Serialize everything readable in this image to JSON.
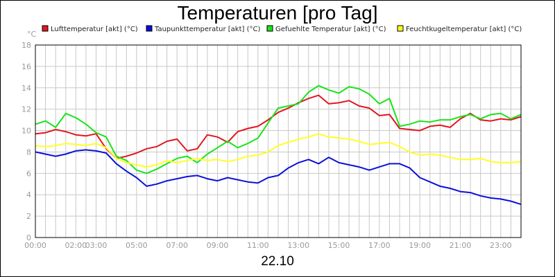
{
  "chart_data": {
    "type": "line",
    "title": "Temperaturen [pro Tag]",
    "date_label": "22.10",
    "y_unit": "°C",
    "ylim": [
      0,
      18
    ],
    "y_ticks": [
      "0",
      "2",
      "4",
      "6",
      "8",
      "10",
      "12",
      "14",
      "16",
      "18"
    ],
    "xlim": [
      0,
      24
    ],
    "x_ticks": [
      {
        "h": 0,
        "label": "00:00"
      },
      {
        "h": 2,
        "label": "02:00"
      },
      {
        "h": 3,
        "label": "03:00"
      },
      {
        "h": 5,
        "label": "05:00"
      },
      {
        "h": 7,
        "label": "07:00"
      },
      {
        "h": 9,
        "label": "09:00"
      },
      {
        "h": 11,
        "label": "11:00"
      },
      {
        "h": 13,
        "label": "13:00"
      },
      {
        "h": 15,
        "label": "15:00"
      },
      {
        "h": 17,
        "label": "17:00"
      },
      {
        "h": 19,
        "label": "19:00"
      },
      {
        "h": 21,
        "label": "21:00"
      },
      {
        "h": 23,
        "label": "23:00"
      }
    ],
    "grid": true,
    "legend_position": "top",
    "series": [
      {
        "name": "Lufttemperatur [akt] (°C)",
        "color": "#e0161e",
        "points": [
          [
            0,
            9.7
          ],
          [
            0.5,
            9.8
          ],
          [
            1,
            10.1
          ],
          [
            1.5,
            9.9
          ],
          [
            2,
            9.6
          ],
          [
            2.5,
            9.5
          ],
          [
            3,
            9.7
          ],
          [
            3.5,
            8.3
          ],
          [
            4,
            7.4
          ],
          [
            4.5,
            7.6
          ],
          [
            5,
            7.9
          ],
          [
            5.5,
            8.3
          ],
          [
            6,
            8.5
          ],
          [
            6.5,
            9.0
          ],
          [
            7,
            9.2
          ],
          [
            7.5,
            8.1
          ],
          [
            8,
            8.3
          ],
          [
            8.5,
            9.6
          ],
          [
            9,
            9.4
          ],
          [
            9.5,
            8.9
          ],
          [
            10,
            9.9
          ],
          [
            10.5,
            10.2
          ],
          [
            11,
            10.4
          ],
          [
            11.5,
            11.0
          ],
          [
            12,
            11.7
          ],
          [
            12.5,
            12.1
          ],
          [
            13,
            12.6
          ],
          [
            13.5,
            13.0
          ],
          [
            14,
            13.3
          ],
          [
            14.5,
            12.5
          ],
          [
            15,
            12.6
          ],
          [
            15.5,
            12.8
          ],
          [
            16,
            12.3
          ],
          [
            16.5,
            12.1
          ],
          [
            17,
            11.4
          ],
          [
            17.5,
            11.5
          ],
          [
            18,
            10.2
          ],
          [
            18.5,
            10.1
          ],
          [
            19,
            10.0
          ],
          [
            19.5,
            10.4
          ],
          [
            20,
            10.5
          ],
          [
            20.5,
            10.3
          ],
          [
            21,
            11.1
          ],
          [
            21.5,
            11.6
          ],
          [
            22,
            11.0
          ],
          [
            22.5,
            10.9
          ],
          [
            23,
            11.1
          ],
          [
            23.5,
            11.0
          ],
          [
            24,
            11.3
          ]
        ]
      },
      {
        "name": "Taupunkttemperatur [akt] (°C)",
        "color": "#0a10d8",
        "points": [
          [
            0,
            8.0
          ],
          [
            0.5,
            7.8
          ],
          [
            1,
            7.6
          ],
          [
            1.5,
            7.8
          ],
          [
            2,
            8.1
          ],
          [
            2.5,
            8.2
          ],
          [
            3,
            8.1
          ],
          [
            3.5,
            7.9
          ],
          [
            4,
            6.9
          ],
          [
            4.5,
            6.2
          ],
          [
            5,
            5.6
          ],
          [
            5.5,
            4.8
          ],
          [
            6,
            5.0
          ],
          [
            6.5,
            5.3
          ],
          [
            7,
            5.5
          ],
          [
            7.5,
            5.7
          ],
          [
            8,
            5.8
          ],
          [
            8.5,
            5.5
          ],
          [
            9,
            5.3
          ],
          [
            9.5,
            5.6
          ],
          [
            10,
            5.4
          ],
          [
            10.5,
            5.2
          ],
          [
            11,
            5.1
          ],
          [
            11.5,
            5.6
          ],
          [
            12,
            5.8
          ],
          [
            12.5,
            6.5
          ],
          [
            13,
            7.0
          ],
          [
            13.5,
            7.3
          ],
          [
            14,
            6.9
          ],
          [
            14.5,
            7.5
          ],
          [
            15,
            7.0
          ],
          [
            15.5,
            6.8
          ],
          [
            16,
            6.6
          ],
          [
            16.5,
            6.3
          ],
          [
            17,
            6.6
          ],
          [
            17.5,
            6.9
          ],
          [
            18,
            6.9
          ],
          [
            18.5,
            6.5
          ],
          [
            19,
            5.6
          ],
          [
            19.5,
            5.2
          ],
          [
            20,
            4.8
          ],
          [
            20.5,
            4.6
          ],
          [
            21,
            4.3
          ],
          [
            21.5,
            4.2
          ],
          [
            22,
            3.9
          ],
          [
            22.5,
            3.7
          ],
          [
            23,
            3.6
          ],
          [
            23.5,
            3.4
          ],
          [
            24,
            3.1
          ]
        ]
      },
      {
        "name": "Gefuehlte Temperatur [akt] (°C)",
        "color": "#18e418",
        "points": [
          [
            0,
            10.6
          ],
          [
            0.5,
            10.9
          ],
          [
            1,
            10.3
          ],
          [
            1.5,
            11.6
          ],
          [
            2,
            11.2
          ],
          [
            2.5,
            10.6
          ],
          [
            3,
            9.8
          ],
          [
            3.5,
            9.4
          ],
          [
            4,
            7.6
          ],
          [
            4.5,
            7.2
          ],
          [
            5,
            6.3
          ],
          [
            5.5,
            6.0
          ],
          [
            6,
            6.4
          ],
          [
            6.5,
            6.9
          ],
          [
            7,
            7.4
          ],
          [
            7.5,
            7.6
          ],
          [
            8,
            7.0
          ],
          [
            8.5,
            7.8
          ],
          [
            9,
            8.4
          ],
          [
            9.5,
            9.0
          ],
          [
            10,
            8.4
          ],
          [
            10.5,
            8.8
          ],
          [
            11,
            9.3
          ],
          [
            11.5,
            10.7
          ],
          [
            12,
            12.1
          ],
          [
            12.5,
            12.3
          ],
          [
            13,
            12.5
          ],
          [
            13.5,
            13.6
          ],
          [
            14,
            14.2
          ],
          [
            14.5,
            13.8
          ],
          [
            15,
            13.5
          ],
          [
            15.5,
            14.1
          ],
          [
            16,
            13.9
          ],
          [
            16.5,
            13.4
          ],
          [
            17,
            12.5
          ],
          [
            17.5,
            13.0
          ],
          [
            18,
            10.4
          ],
          [
            18.5,
            10.6
          ],
          [
            19,
            10.9
          ],
          [
            19.5,
            10.8
          ],
          [
            20,
            11.0
          ],
          [
            20.5,
            11.0
          ],
          [
            21,
            11.3
          ],
          [
            21.5,
            11.5
          ],
          [
            22,
            11.1
          ],
          [
            22.5,
            11.5
          ],
          [
            23,
            11.6
          ],
          [
            23.5,
            11.1
          ],
          [
            24,
            11.5
          ]
        ]
      },
      {
        "name": "Feuchtkugeltemperatur [akt] (°C)",
        "color": "#ffff20",
        "points": [
          [
            0,
            8.6
          ],
          [
            0.5,
            8.5
          ],
          [
            1,
            8.6
          ],
          [
            1.5,
            8.8
          ],
          [
            2,
            8.7
          ],
          [
            2.5,
            8.6
          ],
          [
            3,
            8.8
          ],
          [
            3.5,
            8.4
          ],
          [
            4,
            7.4
          ],
          [
            4.5,
            7.0
          ],
          [
            5,
            6.8
          ],
          [
            5.5,
            6.6
          ],
          [
            6,
            6.8
          ],
          [
            6.5,
            7.2
          ],
          [
            7,
            7.0
          ],
          [
            7.5,
            7.2
          ],
          [
            8,
            7.4
          ],
          [
            8.5,
            7.2
          ],
          [
            9,
            7.3
          ],
          [
            9.5,
            7.1
          ],
          [
            10,
            7.3
          ],
          [
            10.5,
            7.6
          ],
          [
            11,
            7.7
          ],
          [
            11.5,
            8.0
          ],
          [
            12,
            8.6
          ],
          [
            12.5,
            8.9
          ],
          [
            13,
            9.2
          ],
          [
            13.5,
            9.4
          ],
          [
            14,
            9.7
          ],
          [
            14.5,
            9.4
          ],
          [
            15,
            9.3
          ],
          [
            15.5,
            9.2
          ],
          [
            16,
            9.0
          ],
          [
            16.5,
            8.7
          ],
          [
            17,
            8.8
          ],
          [
            17.5,
            8.9
          ],
          [
            18,
            8.5
          ],
          [
            18.5,
            8.0
          ],
          [
            19,
            7.7
          ],
          [
            19.5,
            7.8
          ],
          [
            20,
            7.7
          ],
          [
            20.5,
            7.5
          ],
          [
            21,
            7.3
          ],
          [
            21.5,
            7.3
          ],
          [
            22,
            7.4
          ],
          [
            22.5,
            7.1
          ],
          [
            23,
            7.0
          ],
          [
            23.5,
            7.0
          ],
          [
            24,
            7.1
          ]
        ]
      }
    ]
  }
}
